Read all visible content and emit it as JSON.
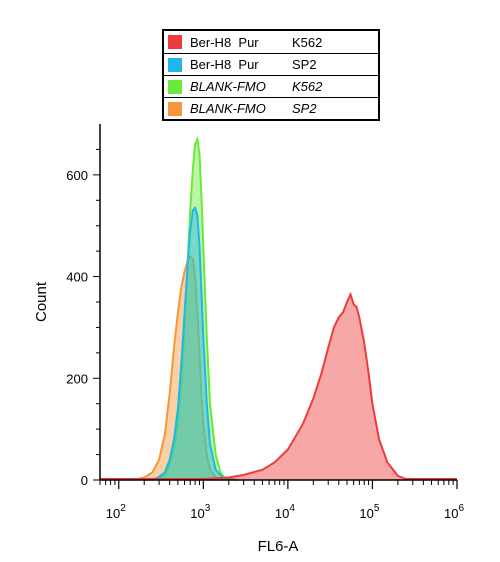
{
  "chart_data": {
    "type": "area",
    "xlabel": "FL6-A",
    "ylabel": "Count",
    "x_scale": "log",
    "xlim": [
      60,
      1000000
    ],
    "ylim": [
      0,
      700
    ],
    "y_ticks": [
      0,
      200,
      400,
      600
    ],
    "x_ticks": [
      {
        "value": 100,
        "base": "10",
        "exp": "2"
      },
      {
        "value": 1000,
        "base": "10",
        "exp": "3"
      },
      {
        "value": 10000,
        "base": "10",
        "exp": "4"
      },
      {
        "value": 100000,
        "base": "10",
        "exp": "5"
      },
      {
        "value": 1000000,
        "base": "10",
        "exp": "6"
      }
    ],
    "legend": [
      {
        "name": "Ber-H8  Pur",
        "sample": "K562",
        "color": "#ef3b3b",
        "italic": false
      },
      {
        "name": "Ber-H8  Pur",
        "sample": "SP2",
        "color": "#1fb7ea",
        "italic": false
      },
      {
        "name": "BLANK-FMO",
        "sample": "K562",
        "color": "#6ce83c",
        "italic": true
      },
      {
        "name": "BLANK-FMO",
        "sample": "SP2",
        "color": "#f7963a",
        "italic": true
      }
    ],
    "series": [
      {
        "key": "BLANK-FMO SP2",
        "color": "#f7963a",
        "points": [
          [
            150,
            0
          ],
          [
            200,
            5
          ],
          [
            250,
            15
          ],
          [
            300,
            40
          ],
          [
            350,
            90
          ],
          [
            400,
            170
          ],
          [
            450,
            260
          ],
          [
            500,
            330
          ],
          [
            550,
            380
          ],
          [
            600,
            410
          ],
          [
            650,
            430
          ],
          [
            700,
            440
          ],
          [
            750,
            435
          ],
          [
            800,
            400
          ],
          [
            850,
            330
          ],
          [
            900,
            250
          ],
          [
            950,
            170
          ],
          [
            1000,
            110
          ],
          [
            1100,
            50
          ],
          [
            1200,
            20
          ],
          [
            1400,
            5
          ],
          [
            1600,
            0
          ]
        ]
      },
      {
        "key": "BLANK-FMO K562",
        "color": "#6ce83c",
        "points": [
          [
            280,
            0
          ],
          [
            350,
            10
          ],
          [
            400,
            30
          ],
          [
            450,
            60
          ],
          [
            500,
            110
          ],
          [
            550,
            190
          ],
          [
            600,
            300
          ],
          [
            650,
            420
          ],
          [
            700,
            530
          ],
          [
            750,
            610
          ],
          [
            800,
            660
          ],
          [
            850,
            670
          ],
          [
            900,
            640
          ],
          [
            950,
            560
          ],
          [
            1000,
            460
          ],
          [
            1100,
            280
          ],
          [
            1200,
            150
          ],
          [
            1400,
            50
          ],
          [
            1600,
            15
          ],
          [
            1800,
            3
          ],
          [
            2000,
            0
          ]
        ]
      },
      {
        "key": "Ber-H8 Pur SP2",
        "color": "#1fb7ea",
        "points": [
          [
            200,
            0
          ],
          [
            280,
            3
          ],
          [
            350,
            15
          ],
          [
            400,
            40
          ],
          [
            450,
            80
          ],
          [
            500,
            140
          ],
          [
            550,
            230
          ],
          [
            600,
            330
          ],
          [
            650,
            420
          ],
          [
            700,
            490
          ],
          [
            750,
            530
          ],
          [
            800,
            535
          ],
          [
            850,
            520
          ],
          [
            900,
            460
          ],
          [
            950,
            370
          ],
          [
            1000,
            280
          ],
          [
            1100,
            150
          ],
          [
            1200,
            70
          ],
          [
            1400,
            20
          ],
          [
            1700,
            5
          ],
          [
            2500,
            0
          ]
        ]
      },
      {
        "key": "Ber-H8 Pur K562",
        "color": "#ef3b3b",
        "points": [
          [
            60,
            2
          ],
          [
            1000,
            2
          ],
          [
            2000,
            5
          ],
          [
            3000,
            10
          ],
          [
            5000,
            20
          ],
          [
            7000,
            35
          ],
          [
            10000,
            60
          ],
          [
            15000,
            110
          ],
          [
            20000,
            160
          ],
          [
            25000,
            210
          ],
          [
            30000,
            260
          ],
          [
            35000,
            300
          ],
          [
            40000,
            320
          ],
          [
            45000,
            330
          ],
          [
            50000,
            350
          ],
          [
            55000,
            365
          ],
          [
            60000,
            345
          ],
          [
            65000,
            340
          ],
          [
            70000,
            320
          ],
          [
            80000,
            270
          ],
          [
            90000,
            210
          ],
          [
            100000,
            150
          ],
          [
            120000,
            80
          ],
          [
            150000,
            35
          ],
          [
            200000,
            8
          ],
          [
            250000,
            2
          ],
          [
            1000000,
            2
          ]
        ]
      }
    ]
  }
}
